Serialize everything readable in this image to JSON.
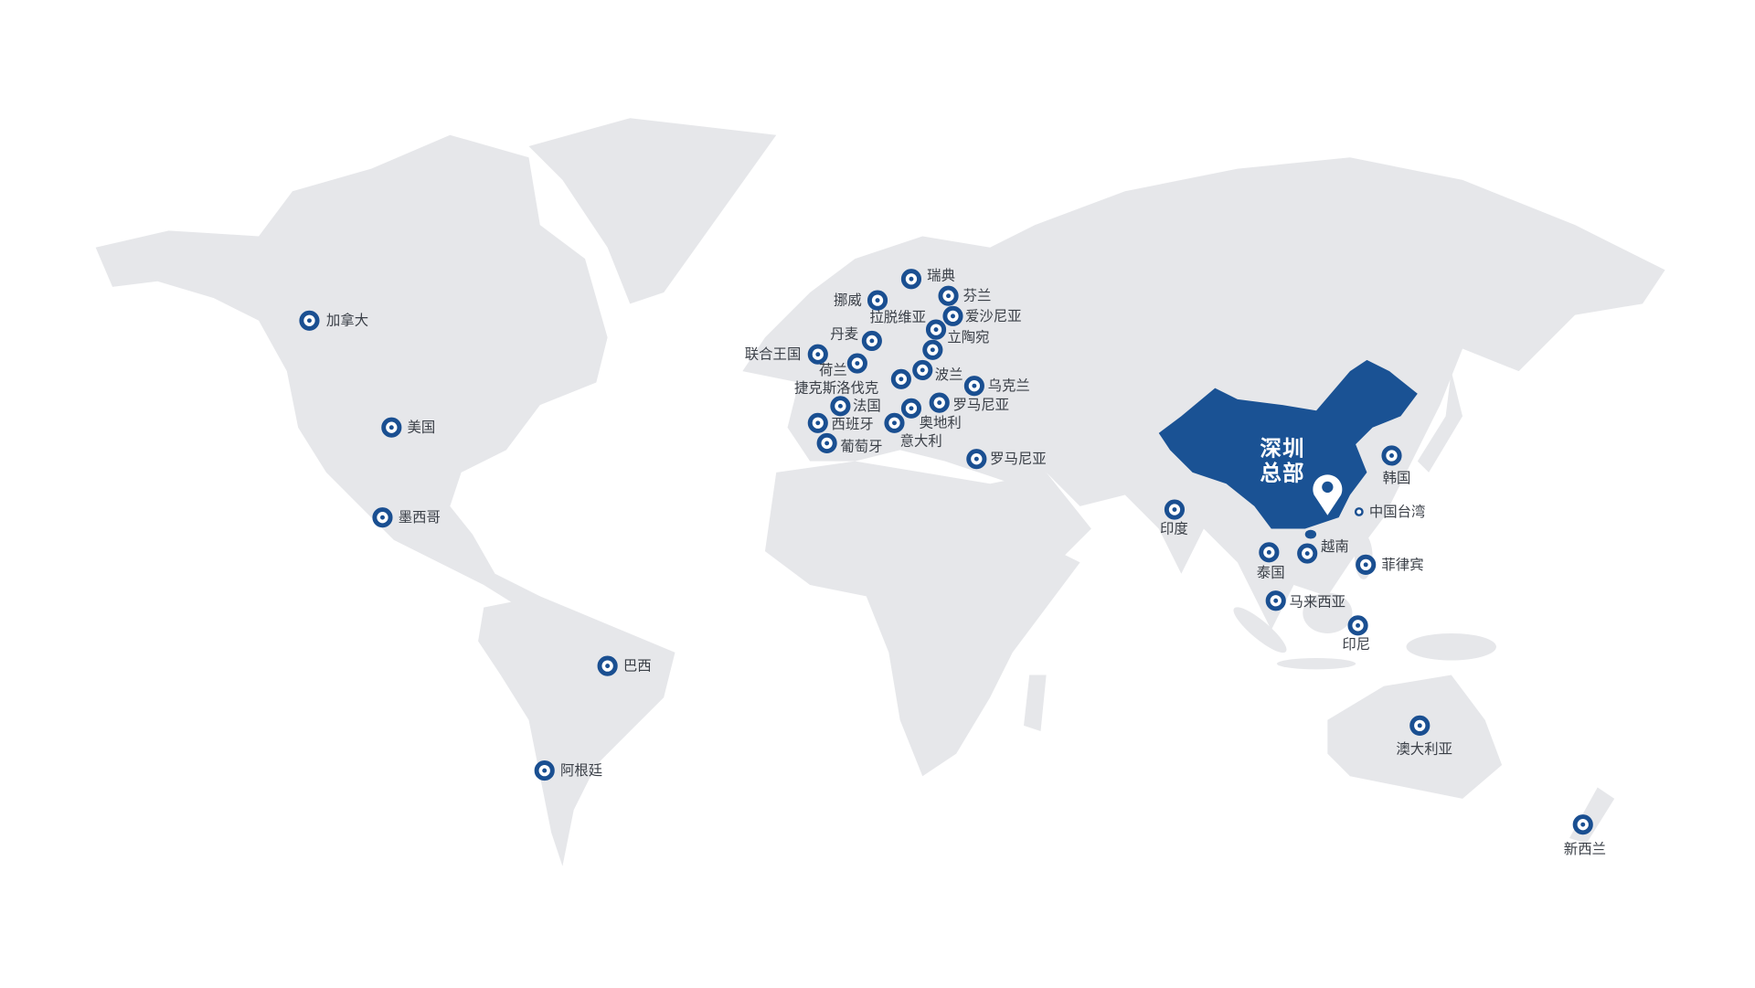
{
  "headquarters": {
    "label_line1": "深圳",
    "label_line2": "总部",
    "icon": "map-pin-icon"
  },
  "colors": {
    "land": "#e6e7ea",
    "highlight": "#1a5294",
    "marker": "#1a4f91"
  },
  "locations": [
    {
      "name": "加拿大"
    },
    {
      "name": "美国"
    },
    {
      "name": "墨西哥"
    },
    {
      "name": "巴西"
    },
    {
      "name": "阿根廷"
    },
    {
      "name": "瑞典"
    },
    {
      "name": "挪威"
    },
    {
      "name": "芬兰"
    },
    {
      "name": "爱沙尼亚"
    },
    {
      "name": "拉脱维亚"
    },
    {
      "name": "立陶宛"
    },
    {
      "name": "丹麦"
    },
    {
      "name": "联合王国"
    },
    {
      "name": "荷兰"
    },
    {
      "name": "波兰"
    },
    {
      "name": "捷克斯洛伐克"
    },
    {
      "name": "乌克兰"
    },
    {
      "name": "法国"
    },
    {
      "name": "罗马尼亚"
    },
    {
      "name": "奥地利"
    },
    {
      "name": "西班牙"
    },
    {
      "name": "意大利"
    },
    {
      "name": "葡萄牙"
    },
    {
      "name": "罗马尼亚"
    },
    {
      "name": "印度"
    },
    {
      "name": "韩国"
    },
    {
      "name": "中国台湾"
    },
    {
      "name": "越南"
    },
    {
      "name": "泰国"
    },
    {
      "name": "菲律宾"
    },
    {
      "name": "马来西亚"
    },
    {
      "name": "印尼"
    },
    {
      "name": "澳大利亚"
    },
    {
      "name": "新西兰"
    }
  ]
}
